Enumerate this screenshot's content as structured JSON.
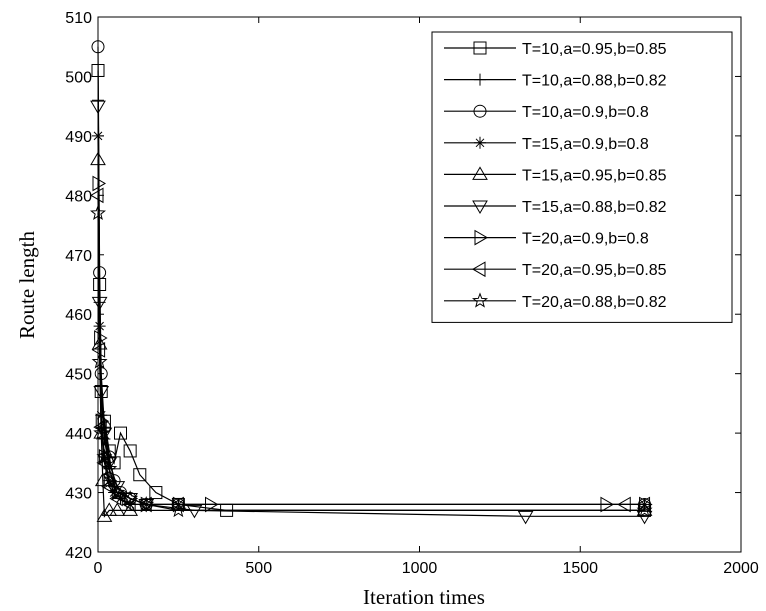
{
  "chart_data": {
    "type": "line",
    "xlabel": "Iteration times",
    "ylabel": "Route length",
    "xlim": [
      0,
      2000
    ],
    "ylim": [
      420,
      510
    ],
    "x_ticks": [
      "0",
      "500",
      "1000",
      "1500",
      "2000"
    ],
    "y_ticks": [
      "420",
      "430",
      "440",
      "450",
      "460",
      "470",
      "480",
      "490",
      "500",
      "510"
    ],
    "grid": false,
    "legend_position": "top-right",
    "line_color": "#000000",
    "series": [
      {
        "name": "T=10,a=0.95,b=0.85",
        "marker": "square",
        "x": [
          0,
          5,
          10,
          20,
          35,
          50,
          70,
          100,
          130,
          180,
          250,
          400,
          1700
        ],
        "y": [
          501,
          465,
          447,
          442,
          437,
          435,
          440,
          437,
          433,
          430,
          428,
          427,
          427
        ]
      },
      {
        "name": "T=10,a=0.88,b=0.82",
        "marker": "plus",
        "x": [
          0,
          5,
          10,
          20,
          35,
          50,
          70,
          100,
          150,
          250,
          1700
        ],
        "y": [
          496,
          462,
          446,
          439,
          434,
          431,
          429,
          428,
          428,
          428,
          428
        ]
      },
      {
        "name": "T=10,a=0.9,b=0.8",
        "marker": "circle",
        "x": [
          0,
          5,
          10,
          20,
          35,
          50,
          70,
          100,
          150,
          250,
          1700
        ],
        "y": [
          505,
          467,
          450,
          441,
          436,
          432,
          430,
          429,
          428,
          428,
          428
        ]
      },
      {
        "name": "T=15,a=0.9,b=0.8",
        "marker": "star",
        "x": [
          0,
          5,
          10,
          20,
          35,
          50,
          70,
          100,
          150,
          250,
          1700
        ],
        "y": [
          490,
          458,
          443,
          436,
          432,
          430,
          429,
          428,
          428,
          428,
          428
        ]
      },
      {
        "name": "T=15,a=0.95,b=0.85",
        "marker": "triangle-up",
        "x": [
          0,
          5,
          10,
          15,
          20,
          35,
          60,
          100,
          1700
        ],
        "y": [
          486,
          455,
          440,
          432,
          426,
          427,
          427,
          427,
          427
        ]
      },
      {
        "name": "T=15,a=0.88,b=0.82",
        "marker": "triangle-down",
        "x": [
          0,
          5,
          10,
          20,
          35,
          60,
          100,
          150,
          300,
          1330,
          1700
        ],
        "y": [
          495,
          462,
          447,
          440,
          435,
          431,
          429,
          428,
          427,
          426,
          426
        ]
      },
      {
        "name": "T=20,a=0.9,b=0.8",
        "marker": "triangle-right",
        "x": [
          0,
          5,
          10,
          20,
          35,
          60,
          100,
          150,
          250,
          350,
          1580,
          1700
        ],
        "y": [
          482,
          456,
          442,
          436,
          432,
          430,
          429,
          428,
          428,
          428,
          428,
          428
        ]
      },
      {
        "name": "T=20,a=0.95,b=0.85",
        "marker": "triangle-left",
        "x": [
          0,
          5,
          10,
          20,
          35,
          60,
          100,
          150,
          250,
          1640,
          1700
        ],
        "y": [
          480,
          454,
          441,
          435,
          431,
          429,
          428,
          428,
          428,
          428,
          428
        ]
      },
      {
        "name": "T=20,a=0.88,b=0.82",
        "marker": "pentagram",
        "x": [
          0,
          5,
          10,
          20,
          35,
          60,
          100,
          150,
          250,
          1700
        ],
        "y": [
          477,
          452,
          440,
          436,
          434,
          430,
          429,
          428,
          427,
          427
        ]
      }
    ]
  }
}
